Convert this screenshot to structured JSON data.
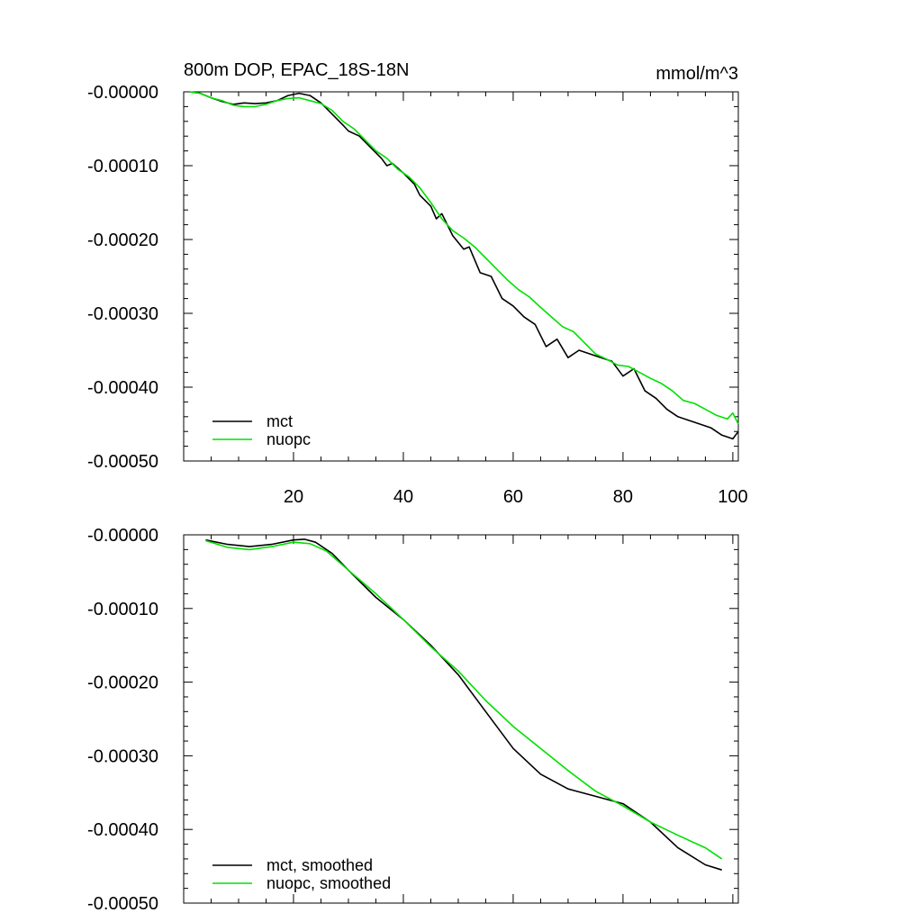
{
  "chart_data": [
    {
      "type": "line",
      "title": "800m DOP, EPAC_18S-18N",
      "units": "mmol/m^3",
      "xlim": [
        0,
        101
      ],
      "ylim": [
        -0.0005,
        0.0
      ],
      "x_ticks": [
        20,
        40,
        60,
        80,
        100
      ],
      "x_tick_labels": [
        "20",
        "40",
        "60",
        "80",
        "100"
      ],
      "y_ticks": [
        0.0,
        -0.0001,
        -0.0002,
        -0.0003,
        -0.0004,
        -0.0005
      ],
      "y_tick_labels": [
        "-0.00000",
        "-0.00010",
        "-0.00020",
        "-0.00030",
        "-0.00040",
        "-0.00050"
      ],
      "legend_position": "bottom-left",
      "grid": false,
      "series": [
        {
          "name": "mct",
          "color": "#000000",
          "points": [
            [
              1,
              0.0
            ],
            [
              3,
              -2e-06
            ],
            [
              5,
              -8e-06
            ],
            [
              7,
              -1.3e-05
            ],
            [
              9,
              -1.7e-05
            ],
            [
              11,
              -1.5e-05
            ],
            [
              13,
              -1.6e-05
            ],
            [
              15,
              -1.5e-05
            ],
            [
              17,
              -1.2e-05
            ],
            [
              19,
              -5e-06
            ],
            [
              21,
              -2e-06
            ],
            [
              23,
              -5e-06
            ],
            [
              25,
              -1.5e-05
            ],
            [
              27,
              -3e-05
            ],
            [
              29,
              -4.5e-05
            ],
            [
              30,
              -5.3e-05
            ],
            [
              32,
              -6e-05
            ],
            [
              34,
              -7.5e-05
            ],
            [
              36,
              -9e-05
            ],
            [
              37,
              -0.0001
            ],
            [
              38,
              -9.7e-05
            ],
            [
              40,
              -0.00011
            ],
            [
              42,
              -0.000125
            ],
            [
              43,
              -0.00014
            ],
            [
              45,
              -0.000155
            ],
            [
              46,
              -0.000172
            ],
            [
              47,
              -0.000165
            ],
            [
              49,
              -0.000195
            ],
            [
              51,
              -0.000213
            ],
            [
              52,
              -0.00021
            ],
            [
              54,
              -0.000245
            ],
            [
              56,
              -0.00025
            ],
            [
              58,
              -0.00028
            ],
            [
              60,
              -0.00029
            ],
            [
              62,
              -0.000305
            ],
            [
              64,
              -0.000315
            ],
            [
              66,
              -0.000345
            ],
            [
              68,
              -0.000335
            ],
            [
              70,
              -0.00036
            ],
            [
              72,
              -0.00035
            ],
            [
              74,
              -0.000355
            ],
            [
              76,
              -0.00036
            ],
            [
              78,
              -0.000365
            ],
            [
              80,
              -0.000385
            ],
            [
              82,
              -0.000375
            ],
            [
              84,
              -0.000405
            ],
            [
              86,
              -0.000415
            ],
            [
              88,
              -0.00043
            ],
            [
              90,
              -0.00044
            ],
            [
              92,
              -0.000445
            ],
            [
              94,
              -0.00045
            ],
            [
              96,
              -0.000455
            ],
            [
              98,
              -0.000465
            ],
            [
              100,
              -0.00047
            ],
            [
              101,
              -0.00046
            ]
          ]
        },
        {
          "name": "nuopc",
          "color": "#00e000",
          "points": [
            [
              1,
              0.0
            ],
            [
              3,
              -2e-06
            ],
            [
              5,
              -8e-06
            ],
            [
              7,
              -1.2e-05
            ],
            [
              9,
              -1.8e-05
            ],
            [
              11,
              -2e-05
            ],
            [
              13,
              -2e-05
            ],
            [
              15,
              -1.7e-05
            ],
            [
              17,
              -1.2e-05
            ],
            [
              19,
              -9e-06
            ],
            [
              21,
              -8e-06
            ],
            [
              23,
              -1.2e-05
            ],
            [
              25,
              -1.6e-05
            ],
            [
              27,
              -2.5e-05
            ],
            [
              29,
              -4e-05
            ],
            [
              31,
              -5e-05
            ],
            [
              33,
              -6.5e-05
            ],
            [
              35,
              -8e-05
            ],
            [
              37,
              -9e-05
            ],
            [
              39,
              -0.000105
            ],
            [
              41,
              -0.000115
            ],
            [
              43,
              -0.00013
            ],
            [
              45,
              -0.00015
            ],
            [
              47,
              -0.000172
            ],
            [
              49,
              -0.000188
            ],
            [
              51,
              -0.000198
            ],
            [
              53,
              -0.00021
            ],
            [
              55,
              -0.000225
            ],
            [
              57,
              -0.00024
            ],
            [
              59,
              -0.000255
            ],
            [
              61,
              -0.000268
            ],
            [
              63,
              -0.000278
            ],
            [
              65,
              -0.000292
            ],
            [
              67,
              -0.000305
            ],
            [
              69,
              -0.000318
            ],
            [
              71,
              -0.000325
            ],
            [
              73,
              -0.00034
            ],
            [
              75,
              -0.000355
            ],
            [
              77,
              -0.000362
            ],
            [
              79,
              -0.00037
            ],
            [
              81,
              -0.000372
            ],
            [
              83,
              -0.00038
            ],
            [
              85,
              -0.000388
            ],
            [
              87,
              -0.000395
            ],
            [
              89,
              -0.000405
            ],
            [
              91,
              -0.000418
            ],
            [
              93,
              -0.000422
            ],
            [
              95,
              -0.00043
            ],
            [
              97,
              -0.000438
            ],
            [
              99,
              -0.000443
            ],
            [
              100,
              -0.000435
            ],
            [
              101,
              -0.00045
            ]
          ]
        }
      ]
    },
    {
      "type": "line",
      "title": "",
      "xlim": [
        0,
        101
      ],
      "ylim": [
        -0.0005,
        0.0
      ],
      "x_ticks": [
        20,
        40,
        60,
        80,
        100
      ],
      "x_tick_labels": [],
      "y_ticks": [
        0.0,
        -0.0001,
        -0.0002,
        -0.0003,
        -0.0004,
        -0.0005
      ],
      "y_tick_labels": [
        "-0.00000",
        "-0.00010",
        "-0.00020",
        "-0.00030",
        "-0.00040",
        "-0.00050"
      ],
      "legend_position": "bottom-left",
      "grid": false,
      "series": [
        {
          "name": "mct, smoothed",
          "color": "#000000",
          "points": [
            [
              4,
              -7e-06
            ],
            [
              8,
              -1.3e-05
            ],
            [
              12,
              -1.6e-05
            ],
            [
              16,
              -1.3e-05
            ],
            [
              20,
              -7e-06
            ],
            [
              22,
              -6e-06
            ],
            [
              24,
              -1e-05
            ],
            [
              27,
              -2.5e-05
            ],
            [
              30,
              -4.8e-05
            ],
            [
              35,
              -8.5e-05
            ],
            [
              40,
              -0.000115
            ],
            [
              45,
              -0.00015
            ],
            [
              50,
              -0.00019
            ],
            [
              55,
              -0.00024
            ],
            [
              60,
              -0.00029
            ],
            [
              65,
              -0.000325
            ],
            [
              70,
              -0.000345
            ],
            [
              75,
              -0.000355
            ],
            [
              80,
              -0.000365
            ],
            [
              85,
              -0.00039
            ],
            [
              90,
              -0.000425
            ],
            [
              95,
              -0.000448
            ],
            [
              98,
              -0.000455
            ]
          ]
        },
        {
          "name": "nuopc, smoothed",
          "color": "#00e000",
          "points": [
            [
              4,
              -8e-06
            ],
            [
              8,
              -1.7e-05
            ],
            [
              12,
              -2e-05
            ],
            [
              16,
              -1.6e-05
            ],
            [
              20,
              -1e-05
            ],
            [
              23,
              -1.2e-05
            ],
            [
              26,
              -2.2e-05
            ],
            [
              30,
              -4.8e-05
            ],
            [
              35,
              -8e-05
            ],
            [
              40,
              -0.000115
            ],
            [
              45,
              -0.000152
            ],
            [
              50,
              -0.000185
            ],
            [
              55,
              -0.000225
            ],
            [
              60,
              -0.00026
            ],
            [
              65,
              -0.00029
            ],
            [
              70,
              -0.00032
            ],
            [
              75,
              -0.000348
            ],
            [
              80,
              -0.000368
            ],
            [
              85,
              -0.00039
            ],
            [
              90,
              -0.000408
            ],
            [
              95,
              -0.000425
            ],
            [
              98,
              -0.00044
            ]
          ]
        }
      ]
    }
  ]
}
